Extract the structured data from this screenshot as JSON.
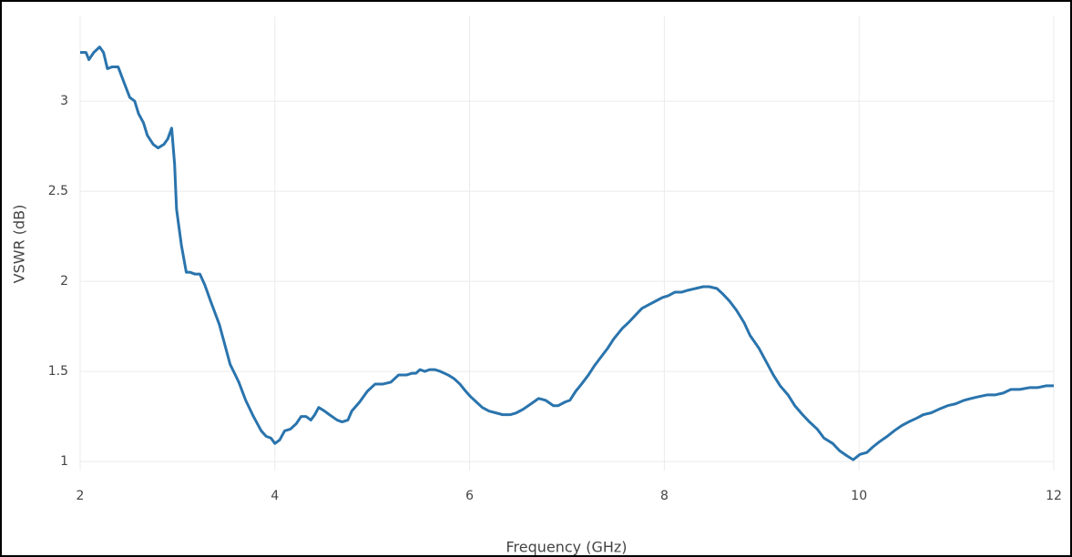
{
  "chart_data": {
    "type": "line",
    "x_label": "Frequency (GHz)",
    "y_label": "VSWR (dB)",
    "xlim": [
      2,
      12
    ],
    "xticks": [
      2,
      4,
      6,
      8,
      10,
      12
    ],
    "ylim": [
      0.95,
      3.47
    ],
    "yticks": [
      1,
      1.5,
      2,
      2.5,
      3
    ],
    "grid": true,
    "series": [
      {
        "color": "#2a74ad",
        "x": [
          2.0,
          2.06,
          2.09,
          2.14,
          2.2,
          2.24,
          2.28,
          2.33,
          2.39,
          2.46,
          2.51,
          2.56,
          2.6,
          2.65,
          2.69,
          2.75,
          2.8,
          2.86,
          2.9,
          2.94,
          2.97,
          2.99,
          3.04,
          3.09,
          3.13,
          3.18,
          3.23,
          3.28,
          3.34,
          3.43,
          3.49,
          3.54,
          3.63,
          3.7,
          3.78,
          3.86,
          3.91,
          3.96,
          4.0,
          4.05,
          4.1,
          4.16,
          4.22,
          4.27,
          4.32,
          4.37,
          4.41,
          4.45,
          4.51,
          4.56,
          4.64,
          4.69,
          4.75,
          4.79,
          4.87,
          4.95,
          5.03,
          5.11,
          5.19,
          5.27,
          5.35,
          5.41,
          5.45,
          5.49,
          5.54,
          5.59,
          5.64,
          5.7,
          5.78,
          5.84,
          5.9,
          5.96,
          6.01,
          6.07,
          6.13,
          6.2,
          6.27,
          6.34,
          6.42,
          6.48,
          6.55,
          6.63,
          6.71,
          6.78,
          6.86,
          6.91,
          6.98,
          7.03,
          7.09,
          7.15,
          7.22,
          7.28,
          7.35,
          7.42,
          7.48,
          7.57,
          7.63,
          7.7,
          7.77,
          7.84,
          7.91,
          7.98,
          8.04,
          8.11,
          8.18,
          8.24,
          8.32,
          8.4,
          8.46,
          8.54,
          8.6,
          8.67,
          8.74,
          8.82,
          8.88,
          8.97,
          9.04,
          9.12,
          9.19,
          9.27,
          9.34,
          9.42,
          9.49,
          9.57,
          9.64,
          9.73,
          9.8,
          9.88,
          9.94,
          10.01,
          10.08,
          10.14,
          10.21,
          10.29,
          10.36,
          10.44,
          10.51,
          10.59,
          10.66,
          10.74,
          10.82,
          10.91,
          10.99,
          11.08,
          11.15,
          11.23,
          11.32,
          11.4,
          11.48,
          11.56,
          11.65,
          11.75,
          11.83,
          11.92,
          12.0
        ],
        "values": [
          3.27,
          3.27,
          3.23,
          3.27,
          3.3,
          3.27,
          3.18,
          3.19,
          3.19,
          3.09,
          3.02,
          3.0,
          2.93,
          2.88,
          2.81,
          2.76,
          2.74,
          2.76,
          2.79,
          2.85,
          2.65,
          2.4,
          2.2,
          2.05,
          2.05,
          2.04,
          2.04,
          1.98,
          1.89,
          1.76,
          1.64,
          1.54,
          1.44,
          1.34,
          1.25,
          1.17,
          1.14,
          1.13,
          1.1,
          1.12,
          1.17,
          1.18,
          1.21,
          1.25,
          1.25,
          1.23,
          1.26,
          1.3,
          1.28,
          1.26,
          1.23,
          1.22,
          1.23,
          1.28,
          1.33,
          1.39,
          1.43,
          1.43,
          1.44,
          1.48,
          1.48,
          1.49,
          1.49,
          1.51,
          1.5,
          1.51,
          1.51,
          1.5,
          1.48,
          1.46,
          1.43,
          1.39,
          1.36,
          1.33,
          1.3,
          1.28,
          1.27,
          1.26,
          1.26,
          1.27,
          1.29,
          1.32,
          1.35,
          1.34,
          1.31,
          1.31,
          1.33,
          1.34,
          1.39,
          1.43,
          1.48,
          1.53,
          1.58,
          1.63,
          1.68,
          1.74,
          1.77,
          1.81,
          1.85,
          1.87,
          1.89,
          1.91,
          1.92,
          1.94,
          1.94,
          1.95,
          1.96,
          1.97,
          1.97,
          1.96,
          1.93,
          1.89,
          1.84,
          1.77,
          1.7,
          1.63,
          1.56,
          1.48,
          1.42,
          1.37,
          1.31,
          1.26,
          1.22,
          1.18,
          1.13,
          1.1,
          1.06,
          1.03,
          1.01,
          1.04,
          1.05,
          1.08,
          1.11,
          1.14,
          1.17,
          1.2,
          1.22,
          1.24,
          1.26,
          1.27,
          1.29,
          1.31,
          1.32,
          1.34,
          1.35,
          1.36,
          1.37,
          1.37,
          1.38,
          1.4,
          1.4,
          1.41,
          1.41,
          1.42,
          1.42
        ]
      }
    ]
  }
}
